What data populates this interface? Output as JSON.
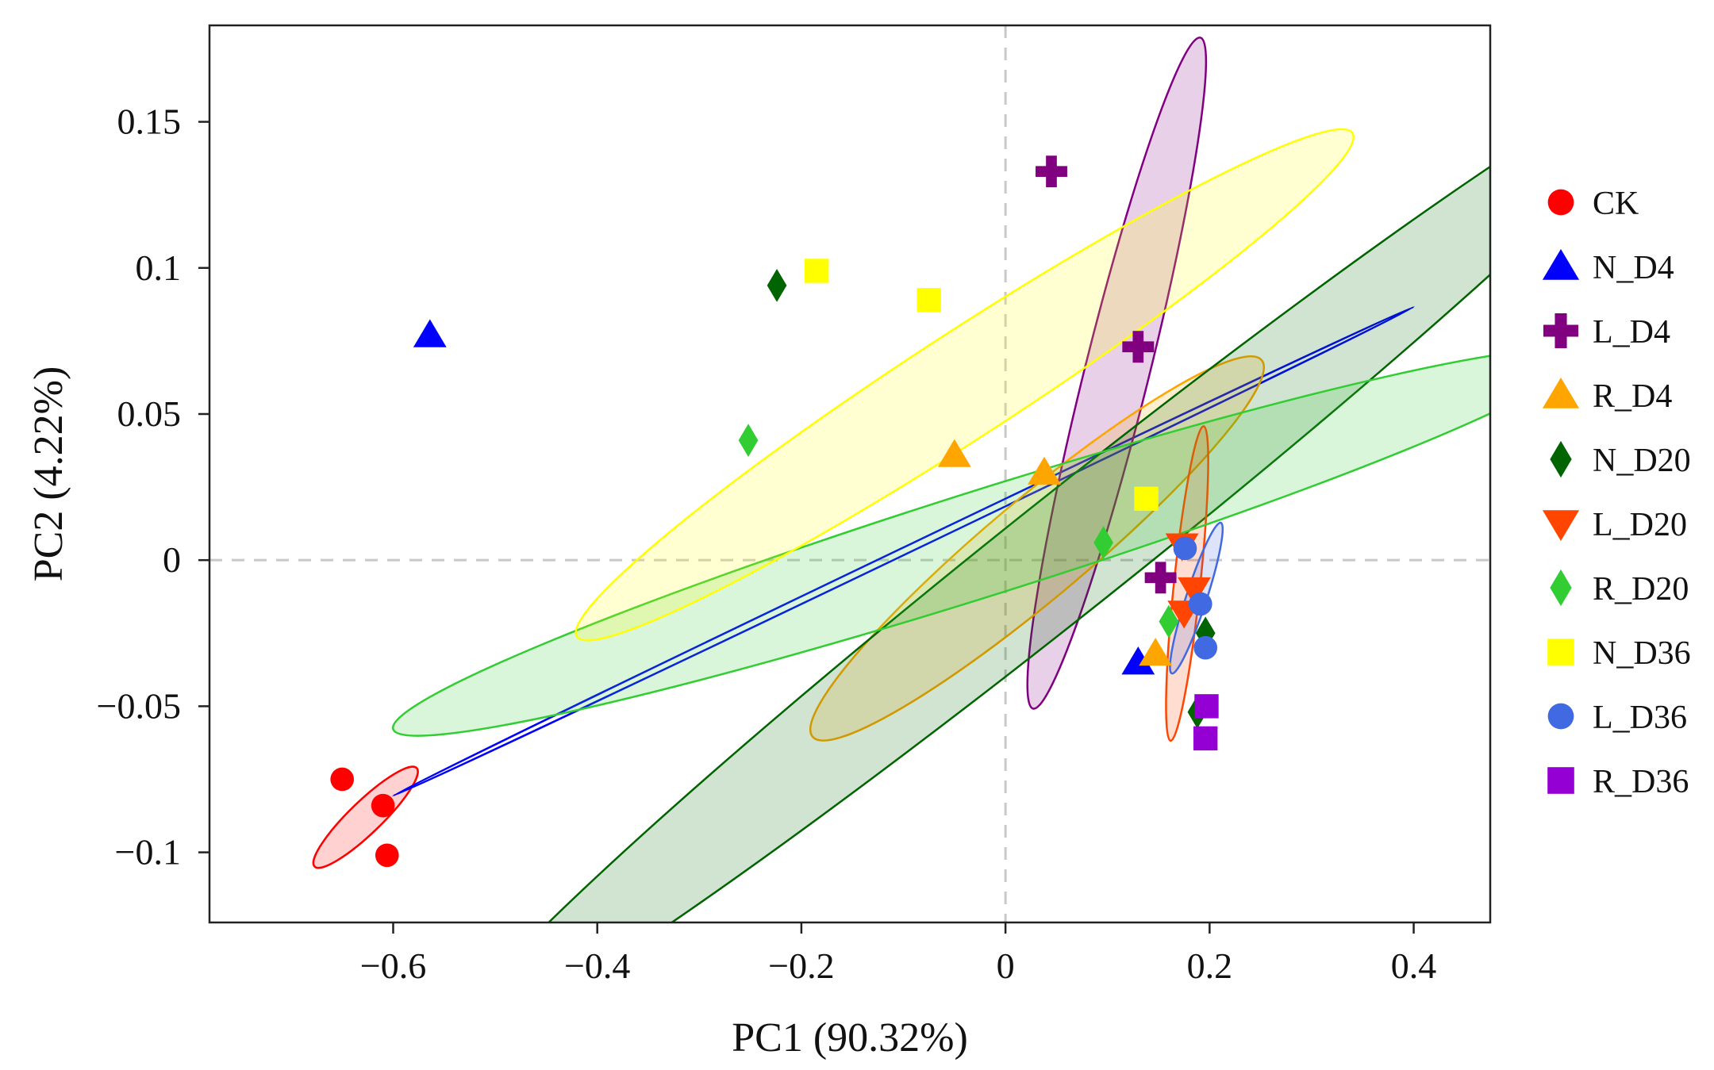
{
  "chart_data": {
    "type": "scatter",
    "xlabel": "PC1 (90.32%)",
    "ylabel": "PC2 (4.22%)",
    "xlim": [
      -0.78,
      0.475
    ],
    "ylim": [
      -0.124,
      0.183
    ],
    "x_ticks": [
      -0.6,
      -0.4,
      -0.2,
      0,
      0.2,
      0.4
    ],
    "x_tick_labels": [
      "−0.6",
      "−0.4",
      "−0.2",
      "0",
      "0.2",
      "0.4"
    ],
    "y_ticks": [
      -0.1,
      -0.05,
      0,
      0.05,
      0.1,
      0.15
    ],
    "y_tick_labels": [
      "−0.1",
      "−0.05",
      "0",
      "0.05",
      "0.1",
      "0.15"
    ],
    "reference_lines": {
      "x": 0,
      "y": 0,
      "style": "dashed",
      "color": "#c8c8c8"
    },
    "legend_position": "right",
    "series": [
      {
        "name": "CK",
        "marker": "circle",
        "color": "#ff0000",
        "fill_alpha": 0.18,
        "ellipse": {
          "cx": -0.627,
          "cy": -0.088,
          "rx": 0.05,
          "ry": 0.0055,
          "angle": 44
        },
        "points": [
          [
            -0.65,
            -0.075
          ],
          [
            -0.61,
            -0.084
          ],
          [
            -0.606,
            -0.101
          ]
        ]
      },
      {
        "name": "N_D4",
        "marker": "triangle-up",
        "color": "#0000ff",
        "fill_alpha": 0,
        "ellipse": {
          "cx": -0.1,
          "cy": 0.003,
          "rx": 0.5,
          "ry": 0.0012,
          "angle": 25.6
        },
        "points": [
          [
            -0.564,
            0.077
          ],
          [
            0.13,
            -0.035
          ]
        ]
      },
      {
        "name": "L_D4",
        "marker": "plus",
        "color": "#800080",
        "fill_alpha": 0.18,
        "ellipse": {
          "cx": 0.109,
          "cy": 0.064,
          "rx": 0.082,
          "ry": 0.011,
          "angle": 76
        },
        "points": [
          [
            0.045,
            0.133
          ],
          [
            0.13,
            0.073
          ],
          [
            0.152,
            -0.006
          ]
        ]
      },
      {
        "name": "R_D4",
        "marker": "triangle-up",
        "color": "#ffa500",
        "fill_alpha": 0.18,
        "ellipse": {
          "cx": 0.031,
          "cy": 0.004,
          "rx": 0.22,
          "ry": 0.017,
          "angle": 40
        },
        "points": [
          [
            -0.05,
            0.036
          ],
          [
            0.038,
            0.03
          ],
          [
            0.147,
            -0.032
          ]
        ]
      },
      {
        "name": "N_D20",
        "marker": "diamond",
        "color": "#006400",
        "fill_alpha": 0.18,
        "ellipse": {
          "cx": 0.06,
          "cy": 0.002,
          "rx": 0.6,
          "ry": 0.02,
          "angle": 38.5
        },
        "points": [
          [
            -0.224,
            0.094
          ],
          [
            0.188,
            -0.052
          ],
          [
            0.196,
            -0.025
          ]
        ]
      },
      {
        "name": "L_D20",
        "marker": "triangle-down",
        "color": "#ff4500",
        "fill_alpha": 0.18,
        "ellipse": {
          "cx": 0.178,
          "cy": -0.008,
          "rx": 0.031,
          "ry": 0.0045,
          "angle": 84
        },
        "points": [
          [
            0.173,
            0.005
          ],
          [
            0.185,
            -0.01
          ],
          [
            0.175,
            -0.018
          ]
        ]
      },
      {
        "name": "R_D20",
        "marker": "diamond",
        "color": "#32cd32",
        "fill_alpha": 0.18,
        "ellipse": {
          "cx": -0.02,
          "cy": 0.006,
          "rx": 0.58,
          "ry": 0.018,
          "angle": 17.5
        },
        "points": [
          [
            -0.252,
            0.041
          ],
          [
            0.096,
            0.006
          ],
          [
            0.16,
            -0.021
          ]
        ]
      },
      {
        "name": "N_D36",
        "marker": "square",
        "color": "#ffff00",
        "fill_alpha": 0.18,
        "ellipse": {
          "cx": -0.04,
          "cy": 0.06,
          "rx": 0.38,
          "ry": 0.018,
          "angle": 33
        },
        "points": [
          [
            -0.185,
            0.099
          ],
          [
            -0.075,
            0.089
          ],
          [
            0.138,
            0.021
          ]
        ]
      },
      {
        "name": "L_D36",
        "marker": "circle",
        "color": "#4169e1",
        "fill_alpha": 0.18,
        "ellipse": {
          "cx": 0.187,
          "cy": -0.013,
          "rx": 0.024,
          "ry": 0.0035,
          "angle": 72
        },
        "points": [
          [
            0.176,
            0.004
          ],
          [
            0.191,
            -0.015
          ],
          [
            0.196,
            -0.03
          ]
        ]
      },
      {
        "name": "R_D36",
        "marker": "square",
        "color": "#9400d3",
        "fill_alpha": 0,
        "ellipse": null,
        "points": [
          [
            0.197,
            -0.05
          ],
          [
            0.196,
            -0.061
          ]
        ]
      }
    ]
  }
}
